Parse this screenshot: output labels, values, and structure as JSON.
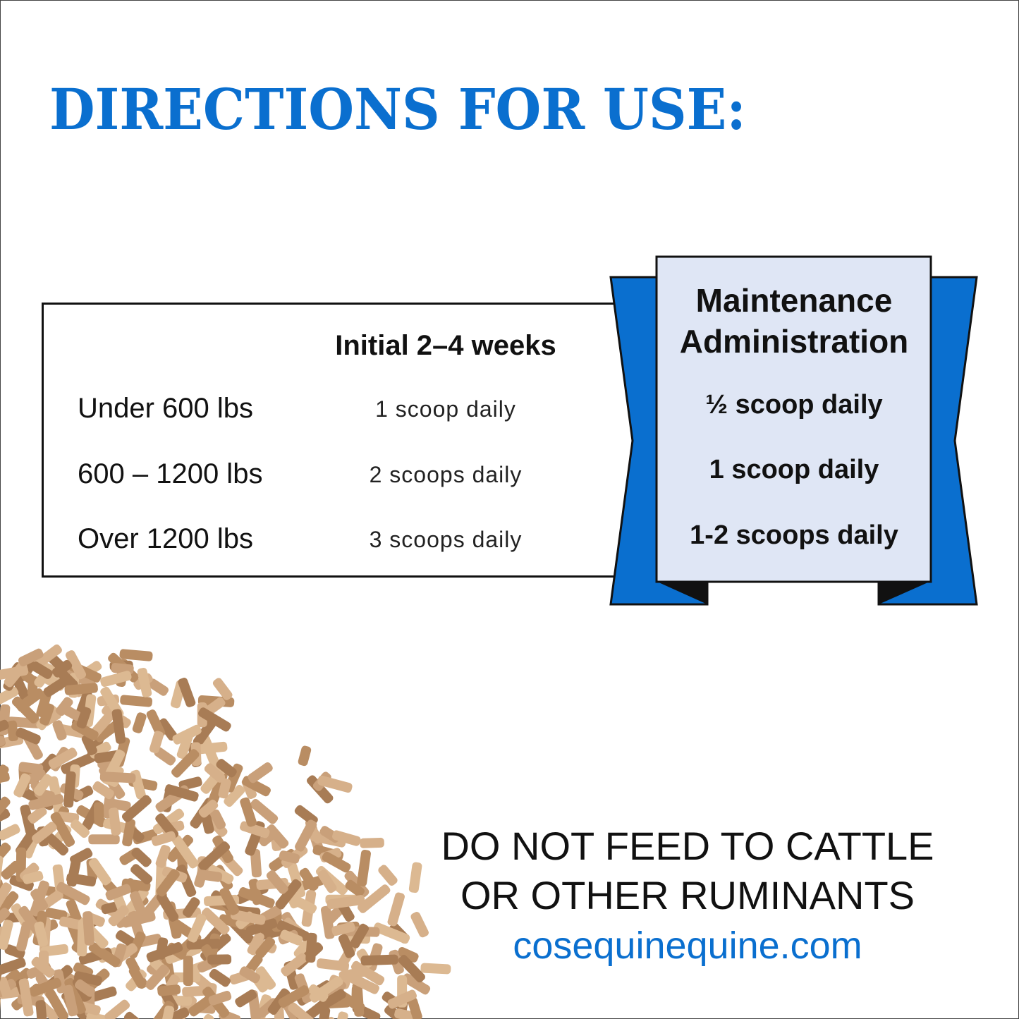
{
  "title": "DIRECTIONS FOR USE:",
  "table": {
    "initial_header": "Initial 2–4 weeks",
    "rows": [
      {
        "weight": "Under 600 lbs",
        "initial": "1 scoop daily",
        "maintenance": "½ scoop daily"
      },
      {
        "weight": "600 – 1200 lbs",
        "initial": "2 scoops daily",
        "maintenance": "1 scoop daily"
      },
      {
        "weight": "Over 1200 lbs",
        "initial": "3 scoops daily",
        "maintenance": "1-2 scoops daily"
      }
    ],
    "maintenance_header_line1": "Maintenance",
    "maintenance_header_line2": "Administration"
  },
  "warning_line1": "DO NOT FEED TO CATTLE",
  "warning_line2": "OR OTHER  RUMINANTS",
  "website": "cosequinequine.com",
  "colors": {
    "brand_blue": "#0a6fcf",
    "panel": "#dfe6f5",
    "pellet": "#c9a07a"
  }
}
